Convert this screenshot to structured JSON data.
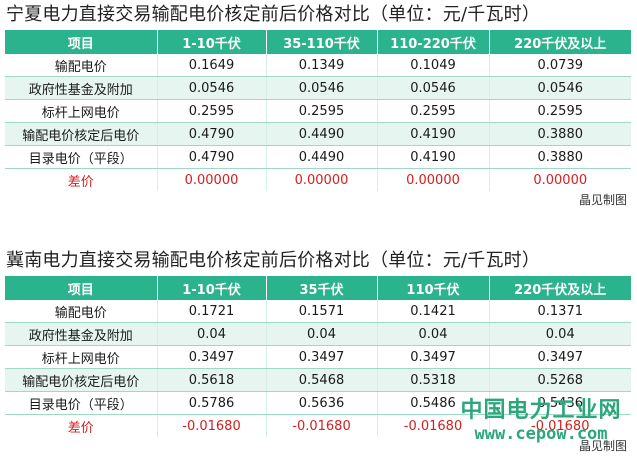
{
  "tables": [
    {
      "title": "宁夏电力直接交易输配电价核定前后价格对比（单位：元/千瓦时）",
      "headers": [
        "项目",
        "1-10千伏",
        "35-110千伏",
        "110-220千伏",
        "220千伏及以上"
      ],
      "rows": [
        {
          "label": "输配电价",
          "values": [
            "0.1649",
            "0.1349",
            "0.1049",
            "0.0739"
          ]
        },
        {
          "label": "政府性基金及附加",
          "values": [
            "0.0546",
            "0.0546",
            "0.0546",
            "0.0546"
          ]
        },
        {
          "label": "标杆上网电价",
          "values": [
            "0.2595",
            "0.2595",
            "0.2595",
            "0.2595"
          ]
        },
        {
          "label": "输配电价核定后电价",
          "values": [
            "0.4790",
            "0.4490",
            "0.4190",
            "0.3880"
          ]
        },
        {
          "label": "目录电价（平段）",
          "values": [
            "0.4790",
            "0.4490",
            "0.4190",
            "0.3880"
          ]
        },
        {
          "label": "差价",
          "values": [
            "0.00000",
            "0.00000",
            "0.00000",
            "0.00000"
          ]
        }
      ],
      "source": "晶见制图"
    },
    {
      "title": "冀南电力直接交易输配电价核定前后价格对比（单位：元/千瓦时）",
      "headers": [
        "项目",
        "1-10千伏",
        "35千伏",
        "110千伏",
        "220千伏及以上"
      ],
      "rows": [
        {
          "label": "输配电价",
          "values": [
            "0.1721",
            "0.1571",
            "0.1421",
            "0.1371"
          ]
        },
        {
          "label": "政府性基金及附加",
          "values": [
            "0.04",
            "0.04",
            "0.04",
            "0.04"
          ]
        },
        {
          "label": "标杆上网电价",
          "values": [
            "0.3497",
            "0.3497",
            "0.3497",
            "0.3497"
          ]
        },
        {
          "label": "输配电价核定后电价",
          "values": [
            "0.5618",
            "0.5468",
            "0.5318",
            "0.5268"
          ]
        },
        {
          "label": "目录电价（平段）",
          "values": [
            "0.5786",
            "0.5636",
            "0.5486",
            "0.5436"
          ]
        },
        {
          "label": "差价",
          "values": [
            "-0.01680",
            "-0.01680",
            "-0.01680",
            "-0.01680"
          ]
        }
      ],
      "source": "晶见制图"
    }
  ],
  "watermark": {
    "name": "中国电力工业网",
    "url": "www.cepow.com"
  },
  "colors": {
    "header_bg": "#2bb38d",
    "row_alt_bg": "#e6f5ef",
    "diff_text": "#d32020",
    "watermark": "#2ca77c"
  }
}
